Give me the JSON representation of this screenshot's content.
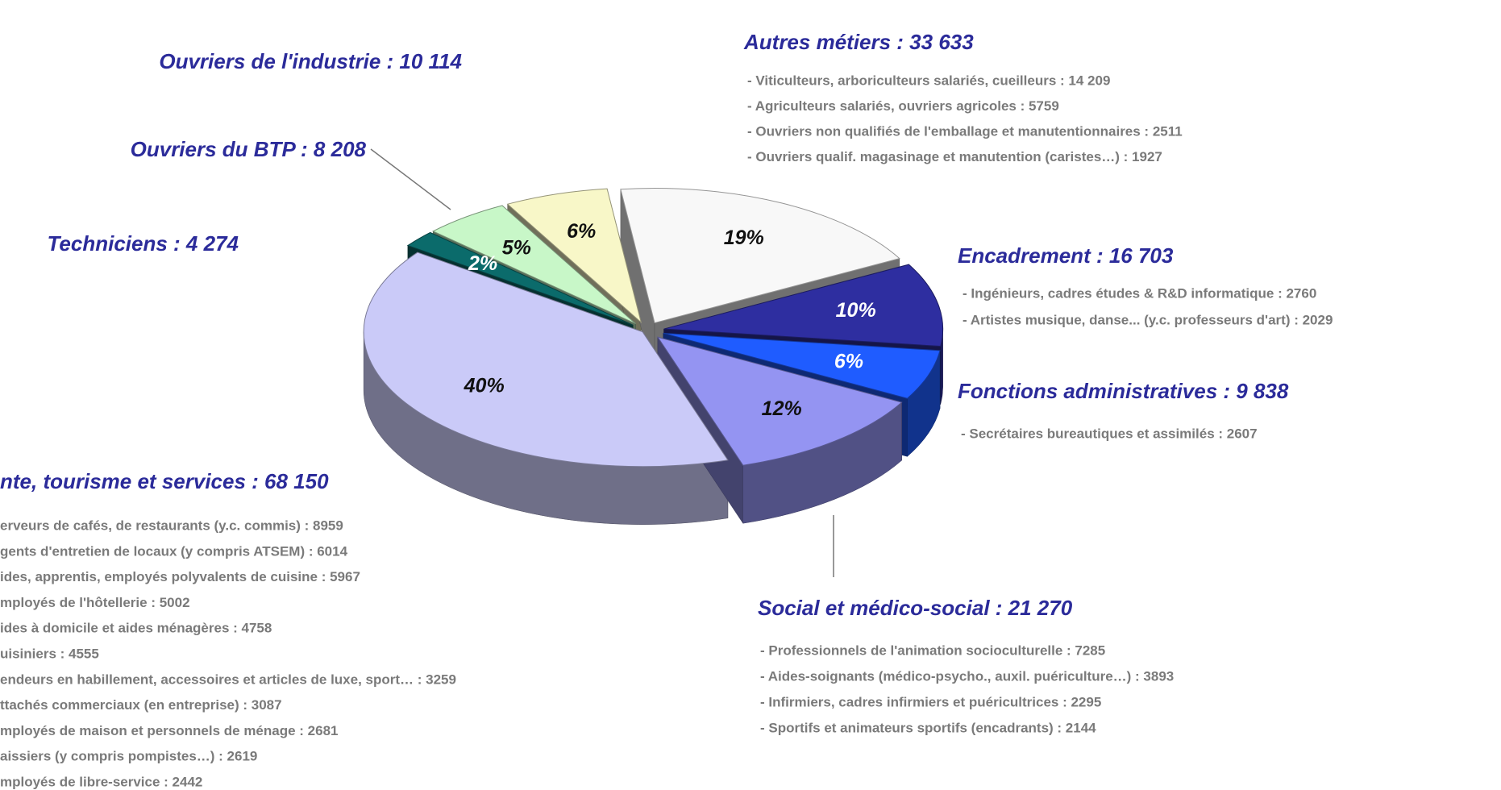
{
  "chart_data": {
    "type": "pie",
    "values": [
      19,
      10,
      6,
      12,
      40,
      2,
      5,
      6
    ],
    "value_labels": [
      "19%",
      "10%",
      "6%",
      "12%",
      "40%",
      "2%",
      "5%",
      "6%"
    ],
    "colors": [
      "#f8f8f8",
      "#2e2ea0",
      "#1f5cff",
      "#9494f2",
      "#cacaf8",
      "#0b6b6b",
      "#c8f7c8",
      "#f8f7c8"
    ],
    "groups": [
      {
        "label": "Ouvriers de l'industrie : 10 114",
        "items": []
      },
      {
        "label": "Ouvriers du BTP : 8 208",
        "items": []
      },
      {
        "label": "Techniciens : 4 274",
        "items": []
      },
      {
        "label": "Autres métiers : 33 633",
        "items": [
          "- Viticulteurs, arboriculteurs salariés, cueilleurs : 14 209",
          "- Agriculteurs salariés, ouvriers agricoles : 5759",
          "- Ouvriers non qualifiés de l'emballage et manutentionnaires : 2511",
          "- Ouvriers qualif. magasinage et manutention (caristes…) : 1927"
        ]
      },
      {
        "label": "Encadrement : 16 703",
        "items": [
          "- Ingénieurs, cadres études & R&D informatique : 2760",
          "- Artistes musique, danse... (y.c. professeurs d'art) : 2029"
        ]
      },
      {
        "label": "Fonctions administratives : 9 838",
        "items": [
          "- Secrétaires bureautiques et assimilés : 2607"
        ]
      },
      {
        "label": "Social et médico-social : 21 270",
        "items": [
          "- Professionnels de l'animation socioculturelle : 7285",
          "- Aides-soignants (médico-psycho., auxil. puériculture…) : 3893",
          "- Infirmiers, cadres infirmiers et puéricultrices : 2295",
          "- Sportifs et animateurs sportifs (encadrants) : 2144"
        ]
      },
      {
        "label": "nte, tourisme et services : 68 150",
        "items": [
          "erveurs de cafés, de restaurants (y.c. commis) : 8959",
          "gents d'entretien de locaux (y compris ATSEM) : 6014",
          "ides, apprentis, employés polyvalents de cuisine : 5967",
          "mployés de l'hôtellerie : 5002",
          "ides à domicile et aides ménagères : 4758",
          "uisiniers : 4555",
          "endeurs en habillement, accessoires et articles de luxe, sport… : 3259",
          "ttachés commerciaux (en entreprise) : 3087",
          "mployés de maison et personnels de ménage : 2681",
          "aissiers (y compris pompistes…) : 2619",
          "mployés de libre-service : 2442"
        ]
      }
    ]
  }
}
